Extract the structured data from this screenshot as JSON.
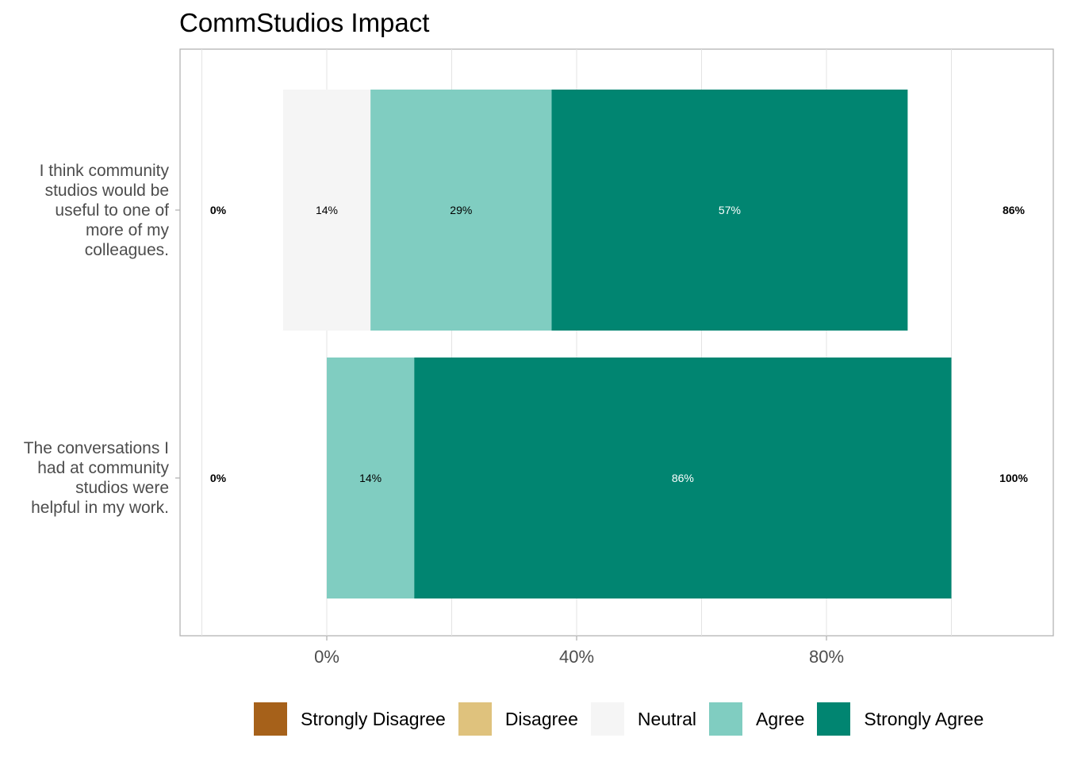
{
  "chart_data": {
    "type": "bar",
    "orientation": "horizontal-stacked",
    "title": "CommStudios Impact",
    "xlabel": "",
    "ylabel": "",
    "xlim": [
      -0.2,
      1.15
    ],
    "x_ticks": [
      0,
      0.4,
      0.8
    ],
    "x_tick_labels": [
      "0%",
      "40%",
      "80%"
    ],
    "grid": true,
    "legend_position": "bottom",
    "levels": [
      "Strongly Disagree",
      "Disagree",
      "Neutral",
      "Agree",
      "Strongly Agree"
    ],
    "colors": {
      "Strongly Disagree": "#A6611A",
      "Disagree": "#DFC27D",
      "Neutral": "#F5F5F5",
      "Agree": "#80CDC1",
      "Strongly Agree": "#018571"
    },
    "items": [
      {
        "label": "I think community studios would be useful to one of more of my colleagues.",
        "label_lines": [
          "I think community",
          "studios would be",
          "useful to one of",
          "more of my",
          "colleagues."
        ],
        "values": {
          "Strongly Disagree": 0,
          "Disagree": 0,
          "Neutral": 0.14,
          "Agree": 0.29,
          "Strongly Agree": 0.57
        },
        "segment_labels": [
          "14%",
          "29%",
          "57%"
        ],
        "low_label": "0%",
        "high_label": "86%"
      },
      {
        "label": "The conversations I had at community studios were helpful in my work.",
        "label_lines": [
          "The conversations I",
          "had at community",
          "studios were",
          "helpful in my work."
        ],
        "values": {
          "Strongly Disagree": 0,
          "Disagree": 0,
          "Neutral": 0,
          "Agree": 0.14,
          "Strongly Agree": 0.86
        },
        "segment_labels": [
          "14%",
          "86%"
        ],
        "low_label": "0%",
        "high_label": "100%"
      }
    ]
  }
}
